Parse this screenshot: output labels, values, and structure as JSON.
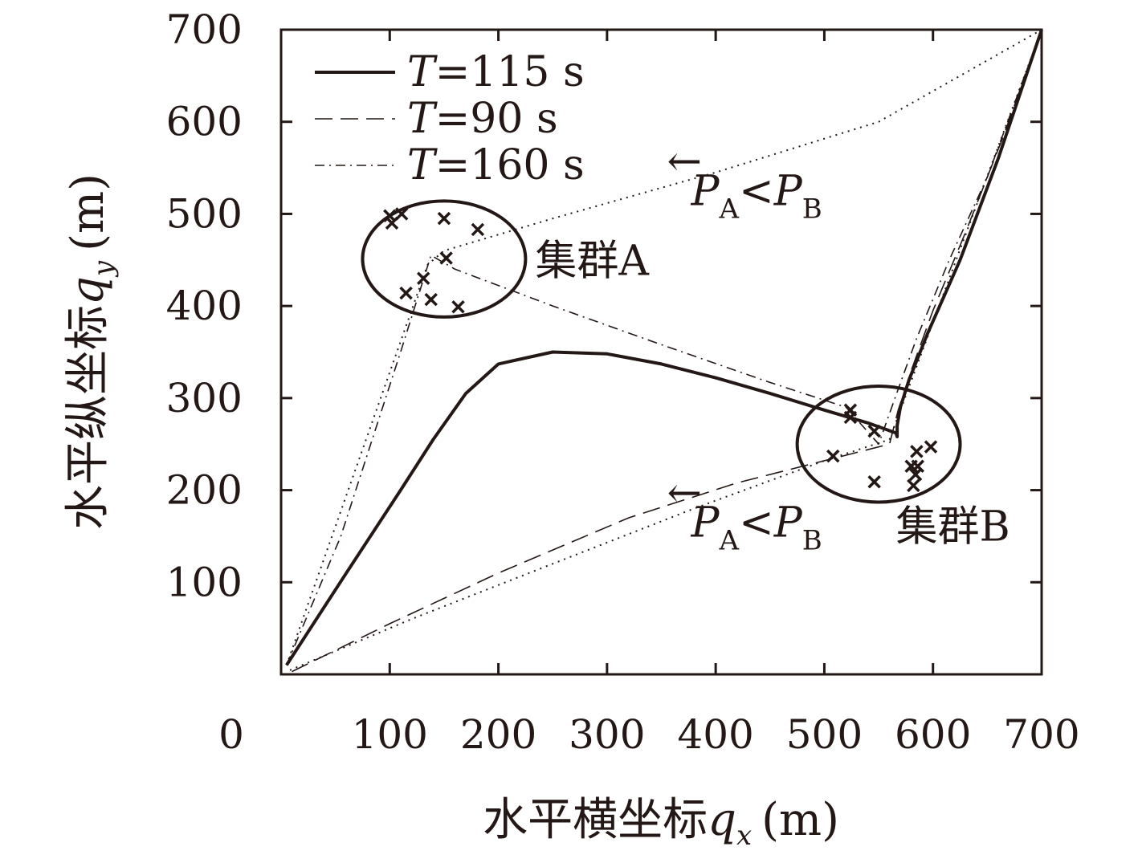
{
  "chart_data": {
    "type": "line",
    "title": "",
    "xlabel_prefix": "水平横坐标",
    "xlabel_symbol": "q",
    "xlabel_sub": "x",
    "xlabel_unit": "(m)",
    "ylabel_prefix": "水平纵坐标",
    "ylabel_symbol": "q",
    "ylabel_sub": "y",
    "ylabel_unit": "(m)",
    "xlim": [
      0,
      700
    ],
    "ylim": [
      0,
      700
    ],
    "origin_label": "0",
    "xticks": [
      100,
      200,
      300,
      400,
      500,
      600,
      700
    ],
    "yticks": [
      100,
      200,
      300,
      400,
      500,
      600,
      700
    ],
    "grid": false,
    "legend_position": "top-left",
    "series": [
      {
        "name_symbol": "T",
        "name_value": "=115 s",
        "style": "solid",
        "points": [
          [
            5,
            10
          ],
          [
            60,
            110
          ],
          [
            110,
            200
          ],
          [
            140,
            255
          ],
          [
            170,
            305
          ],
          [
            200,
            337
          ],
          [
            250,
            350
          ],
          [
            300,
            348
          ],
          [
            350,
            337
          ],
          [
            400,
            322
          ],
          [
            450,
            305
          ],
          [
            500,
            287
          ],
          [
            540,
            273
          ],
          [
            566,
            262
          ],
          [
            567,
            258
          ],
          [
            567,
            270
          ],
          [
            570,
            290
          ],
          [
            578,
            320
          ],
          [
            595,
            370
          ],
          [
            625,
            450
          ],
          [
            660,
            560
          ],
          [
            700,
            700
          ]
        ]
      },
      {
        "name_symbol": "T",
        "name_value": "=90 s",
        "style": "dashed",
        "points": [
          [
            10,
            3
          ],
          [
            100,
            55
          ],
          [
            200,
            110
          ],
          [
            320,
            170
          ],
          [
            420,
            208
          ],
          [
            500,
            232
          ],
          [
            560,
            250
          ],
          [
            568,
            287
          ],
          [
            580,
            330
          ],
          [
            600,
            395
          ],
          [
            630,
            480
          ],
          [
            665,
            585
          ],
          [
            700,
            700
          ]
        ]
      },
      {
        "name_symbol": "T",
        "name_value": "=160 s",
        "style": "dashdot",
        "points": [
          [
            5,
            10
          ],
          [
            55,
            150
          ],
          [
            110,
            350
          ],
          [
            138,
            455
          ],
          [
            160,
            440
          ],
          [
            250,
            400
          ],
          [
            350,
            358
          ],
          [
            450,
            317
          ],
          [
            520,
            290
          ],
          [
            550,
            250
          ],
          [
            565,
            300
          ],
          [
            585,
            365
          ],
          [
            615,
            450
          ],
          [
            650,
            540
          ],
          [
            700,
            700
          ]
        ]
      },
      {
        "name": "",
        "style": "dotted",
        "points": [
          [
            5,
            10
          ],
          [
            135,
            445
          ],
          [
            150,
            460
          ],
          [
            250,
            495
          ],
          [
            400,
            545
          ],
          [
            550,
            600
          ],
          [
            700,
            700
          ],
          [
            560,
            255
          ],
          [
            500,
            232
          ],
          [
            380,
            180
          ],
          [
            250,
            120
          ],
          [
            120,
            60
          ],
          [
            5,
            3
          ]
        ]
      }
    ],
    "markers": [
      {
        "x": 100,
        "y": 498
      },
      {
        "x": 102,
        "y": 490
      },
      {
        "x": 111,
        "y": 500
      },
      {
        "x": 150,
        "y": 495
      },
      {
        "x": 181,
        "y": 483
      },
      {
        "x": 152,
        "y": 452
      },
      {
        "x": 131,
        "y": 430
      },
      {
        "x": 115,
        "y": 414
      },
      {
        "x": 138,
        "y": 407
      },
      {
        "x": 163,
        "y": 399
      },
      {
        "x": 524,
        "y": 287
      },
      {
        "x": 524,
        "y": 279
      },
      {
        "x": 546,
        "y": 264
      },
      {
        "x": 508,
        "y": 237
      },
      {
        "x": 546,
        "y": 209
      },
      {
        "x": 585,
        "y": 242
      },
      {
        "x": 598,
        "y": 247
      },
      {
        "x": 580,
        "y": 226
      },
      {
        "x": 586,
        "y": 226
      },
      {
        "x": 584,
        "y": 217
      },
      {
        "x": 582,
        "y": 205
      }
    ],
    "clusters": [
      {
        "label": "集群A",
        "center": [
          150,
          451
        ],
        "radius_x": 75,
        "radius_y": 63
      },
      {
        "label": "集群B",
        "center": [
          550,
          250
        ],
        "radius_x": 75,
        "radius_y": 63
      }
    ],
    "annotations": [
      {
        "arrow": "←",
        "p1": "P",
        "s1": "A",
        "op": "<",
        "p2": "P",
        "s2": "B",
        "at": [
          370,
          540
        ]
      },
      {
        "arrow": "←",
        "p1": "P",
        "s1": "A",
        "op": "<",
        "p2": "P",
        "s2": "B",
        "at": [
          370,
          180
        ]
      }
    ]
  }
}
